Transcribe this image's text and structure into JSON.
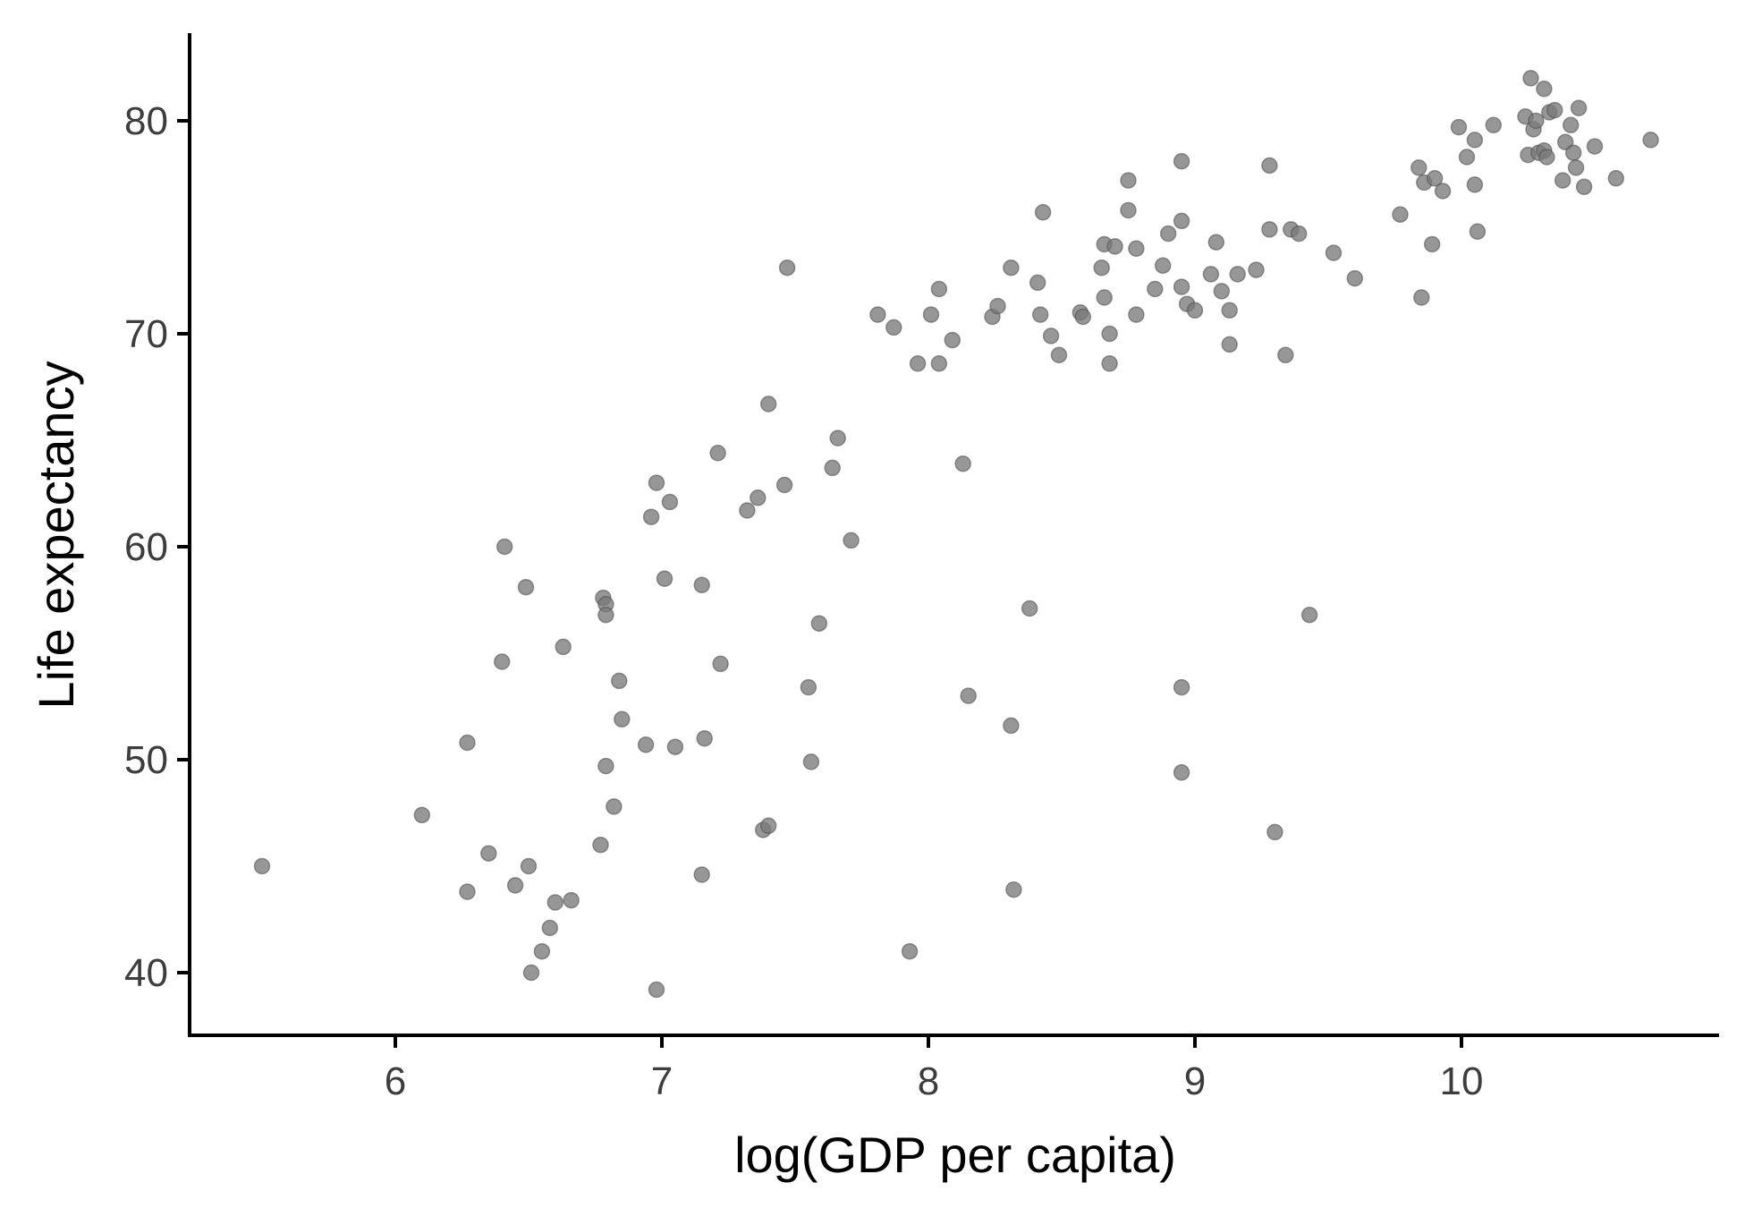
{
  "chart_data": {
    "type": "scatter",
    "title": "",
    "xlabel": "log(GDP per capita)",
    "ylabel": "Life expectancy",
    "xlim": [
      5.25,
      10.95
    ],
    "ylim": [
      37,
      84
    ],
    "x_ticks": [
      6,
      7,
      8,
      9,
      10
    ],
    "y_ticks": [
      40,
      50,
      60,
      70,
      80
    ],
    "grid": false,
    "legend": "none",
    "point_color": "#7a7a7a",
    "points": [
      {
        "x": 5.5,
        "y": 45.0
      },
      {
        "x": 6.1,
        "y": 47.4
      },
      {
        "x": 6.27,
        "y": 50.8
      },
      {
        "x": 6.27,
        "y": 43.8
      },
      {
        "x": 6.35,
        "y": 45.6
      },
      {
        "x": 6.4,
        "y": 54.6
      },
      {
        "x": 6.41,
        "y": 60.0
      },
      {
        "x": 6.45,
        "y": 44.1
      },
      {
        "x": 6.49,
        "y": 58.1
      },
      {
        "x": 6.5,
        "y": 45.0
      },
      {
        "x": 6.51,
        "y": 40.0
      },
      {
        "x": 6.55,
        "y": 41.0
      },
      {
        "x": 6.58,
        "y": 42.1
      },
      {
        "x": 6.6,
        "y": 43.3
      },
      {
        "x": 6.63,
        "y": 55.3
      },
      {
        "x": 6.66,
        "y": 43.4
      },
      {
        "x": 6.77,
        "y": 46.0
      },
      {
        "x": 6.78,
        "y": 57.6
      },
      {
        "x": 6.79,
        "y": 57.3
      },
      {
        "x": 6.79,
        "y": 56.8
      },
      {
        "x": 6.79,
        "y": 49.7
      },
      {
        "x": 6.82,
        "y": 47.8
      },
      {
        "x": 6.84,
        "y": 53.7
      },
      {
        "x": 6.85,
        "y": 51.9
      },
      {
        "x": 6.94,
        "y": 50.7
      },
      {
        "x": 6.96,
        "y": 61.4
      },
      {
        "x": 6.98,
        "y": 63.0
      },
      {
        "x": 6.98,
        "y": 39.2
      },
      {
        "x": 7.01,
        "y": 58.5
      },
      {
        "x": 7.03,
        "y": 62.1
      },
      {
        "x": 7.05,
        "y": 50.6
      },
      {
        "x": 7.15,
        "y": 58.2
      },
      {
        "x": 7.15,
        "y": 44.6
      },
      {
        "x": 7.16,
        "y": 51.0
      },
      {
        "x": 7.21,
        "y": 64.4
      },
      {
        "x": 7.22,
        "y": 54.5
      },
      {
        "x": 7.32,
        "y": 61.7
      },
      {
        "x": 7.36,
        "y": 62.3
      },
      {
        "x": 7.38,
        "y": 46.7
      },
      {
        "x": 7.4,
        "y": 66.7
      },
      {
        "x": 7.4,
        "y": 46.9
      },
      {
        "x": 7.46,
        "y": 62.9
      },
      {
        "x": 7.47,
        "y": 73.1
      },
      {
        "x": 7.55,
        "y": 53.4
      },
      {
        "x": 7.56,
        "y": 49.9
      },
      {
        "x": 7.59,
        "y": 56.4
      },
      {
        "x": 7.64,
        "y": 63.7
      },
      {
        "x": 7.66,
        "y": 65.1
      },
      {
        "x": 7.71,
        "y": 60.3
      },
      {
        "x": 7.81,
        "y": 70.9
      },
      {
        "x": 7.87,
        "y": 70.3
      },
      {
        "x": 7.93,
        "y": 41.0
      },
      {
        "x": 7.96,
        "y": 68.6
      },
      {
        "x": 8.01,
        "y": 70.9
      },
      {
        "x": 8.04,
        "y": 72.1
      },
      {
        "x": 8.04,
        "y": 68.6
      },
      {
        "x": 8.09,
        "y": 69.7
      },
      {
        "x": 8.13,
        "y": 63.9
      },
      {
        "x": 8.15,
        "y": 53.0
      },
      {
        "x": 8.24,
        "y": 70.8
      },
      {
        "x": 8.26,
        "y": 71.3
      },
      {
        "x": 8.31,
        "y": 73.1
      },
      {
        "x": 8.31,
        "y": 51.6
      },
      {
        "x": 8.32,
        "y": 43.9
      },
      {
        "x": 8.38,
        "y": 57.1
      },
      {
        "x": 8.41,
        "y": 72.4
      },
      {
        "x": 8.42,
        "y": 70.9
      },
      {
        "x": 8.43,
        "y": 75.7
      },
      {
        "x": 8.46,
        "y": 69.9
      },
      {
        "x": 8.49,
        "y": 69.0
      },
      {
        "x": 8.57,
        "y": 71.0
      },
      {
        "x": 8.58,
        "y": 70.8
      },
      {
        "x": 8.65,
        "y": 73.1
      },
      {
        "x": 8.66,
        "y": 74.2
      },
      {
        "x": 8.66,
        "y": 71.7
      },
      {
        "x": 8.68,
        "y": 70.0
      },
      {
        "x": 8.68,
        "y": 68.6
      },
      {
        "x": 8.7,
        "y": 74.1
      },
      {
        "x": 8.75,
        "y": 77.2
      },
      {
        "x": 8.75,
        "y": 75.8
      },
      {
        "x": 8.78,
        "y": 74.0
      },
      {
        "x": 8.78,
        "y": 70.9
      },
      {
        "x": 8.85,
        "y": 72.1
      },
      {
        "x": 8.88,
        "y": 73.2
      },
      {
        "x": 8.9,
        "y": 74.7
      },
      {
        "x": 8.95,
        "y": 78.1
      },
      {
        "x": 8.95,
        "y": 75.3
      },
      {
        "x": 8.95,
        "y": 72.2
      },
      {
        "x": 8.95,
        "y": 53.4
      },
      {
        "x": 8.95,
        "y": 49.4
      },
      {
        "x": 8.97,
        "y": 71.4
      },
      {
        "x": 9.0,
        "y": 71.1
      },
      {
        "x": 9.06,
        "y": 72.8
      },
      {
        "x": 9.08,
        "y": 74.3
      },
      {
        "x": 9.1,
        "y": 72.0
      },
      {
        "x": 9.13,
        "y": 71.1
      },
      {
        "x": 9.13,
        "y": 69.5
      },
      {
        "x": 9.16,
        "y": 72.8
      },
      {
        "x": 9.23,
        "y": 73.0
      },
      {
        "x": 9.28,
        "y": 77.9
      },
      {
        "x": 9.28,
        "y": 74.9
      },
      {
        "x": 9.3,
        "y": 46.6
      },
      {
        "x": 9.34,
        "y": 69.0
      },
      {
        "x": 9.36,
        "y": 74.9
      },
      {
        "x": 9.39,
        "y": 74.7
      },
      {
        "x": 9.43,
        "y": 56.8
      },
      {
        "x": 9.52,
        "y": 73.8
      },
      {
        "x": 9.6,
        "y": 72.6
      },
      {
        "x": 9.77,
        "y": 75.6
      },
      {
        "x": 9.84,
        "y": 77.8
      },
      {
        "x": 9.85,
        "y": 71.7
      },
      {
        "x": 9.86,
        "y": 77.1
      },
      {
        "x": 9.89,
        "y": 74.2
      },
      {
        "x": 9.9,
        "y": 77.3
      },
      {
        "x": 9.93,
        "y": 76.7
      },
      {
        "x": 9.99,
        "y": 79.7
      },
      {
        "x": 10.02,
        "y": 78.3
      },
      {
        "x": 10.05,
        "y": 79.1
      },
      {
        "x": 10.05,
        "y": 77.0
      },
      {
        "x": 10.06,
        "y": 74.8
      },
      {
        "x": 10.12,
        "y": 79.8
      },
      {
        "x": 10.24,
        "y": 80.2
      },
      {
        "x": 10.25,
        "y": 78.4
      },
      {
        "x": 10.26,
        "y": 82.0
      },
      {
        "x": 10.27,
        "y": 79.6
      },
      {
        "x": 10.28,
        "y": 80.0
      },
      {
        "x": 10.29,
        "y": 78.5
      },
      {
        "x": 10.31,
        "y": 81.5
      },
      {
        "x": 10.31,
        "y": 78.6
      },
      {
        "x": 10.32,
        "y": 78.3
      },
      {
        "x": 10.33,
        "y": 80.4
      },
      {
        "x": 10.35,
        "y": 80.5
      },
      {
        "x": 10.38,
        "y": 77.2
      },
      {
        "x": 10.39,
        "y": 79.0
      },
      {
        "x": 10.41,
        "y": 79.8
      },
      {
        "x": 10.42,
        "y": 78.5
      },
      {
        "x": 10.43,
        "y": 77.8
      },
      {
        "x": 10.44,
        "y": 80.6
      },
      {
        "x": 10.46,
        "y": 76.9
      },
      {
        "x": 10.5,
        "y": 78.8
      },
      {
        "x": 10.58,
        "y": 77.3
      },
      {
        "x": 10.71,
        "y": 79.1
      }
    ]
  }
}
